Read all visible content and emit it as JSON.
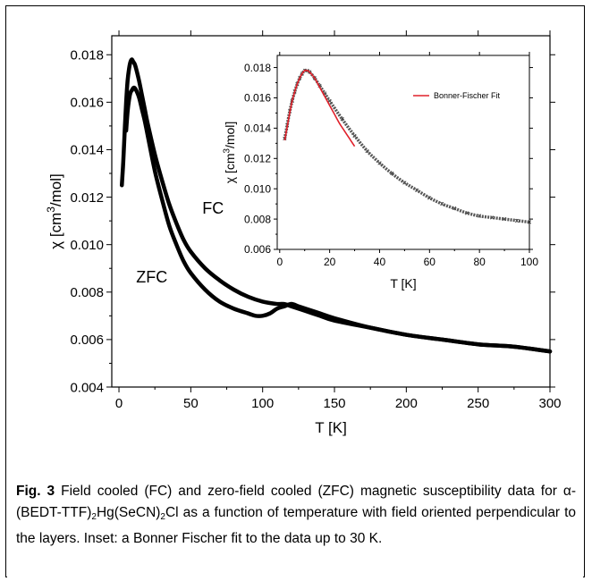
{
  "chart_data": [
    {
      "type": "line",
      "xlabel": "T [K]",
      "ylabel_prefix": "χ [cm",
      "ylabel_sup": "3",
      "ylabel_suffix": "/mol]",
      "xlim": [
        -5,
        300
      ],
      "ylim": [
        0.004,
        0.0188
      ],
      "xticks": [
        0,
        50,
        100,
        150,
        200,
        250,
        300
      ],
      "xtick_labels": [
        "0",
        "50",
        "100",
        "150",
        "200",
        "250",
        "300"
      ],
      "yticks": [
        0.004,
        0.006,
        0.008,
        0.01,
        0.012,
        0.014,
        0.016,
        0.018
      ],
      "ytick_labels": [
        "0.004",
        "0.006",
        "0.008",
        "0.010",
        "0.012",
        "0.014",
        "0.016",
        "0.018"
      ],
      "annotations": [
        "FC",
        "ZFC"
      ],
      "series": [
        {
          "x": [
            2,
            3,
            4,
            5,
            6,
            7,
            8,
            9,
            10,
            11,
            12,
            14,
            16,
            18,
            20,
            25,
            30,
            35,
            40,
            45,
            50,
            60,
            70,
            80,
            90,
            100,
            110,
            115,
            120,
            130,
            140,
            150,
            175,
            200,
            225,
            250,
            275,
            300
          ],
          "values": [
            0.0125,
            0.0135,
            0.0148,
            0.016,
            0.0169,
            0.0174,
            0.0177,
            0.0178,
            0.0177,
            0.0176,
            0.0174,
            0.0169,
            0.0163,
            0.0157,
            0.0151,
            0.0138,
            0.0127,
            0.0117,
            0.0109,
            0.0102,
            0.0097,
            0.009,
            0.0085,
            0.0081,
            0.0078,
            0.0076,
            0.0075,
            0.0075,
            0.0074,
            0.0072,
            0.007,
            0.0068,
            0.0065,
            0.0062,
            0.006,
            0.0058,
            0.0057,
            0.0055
          ]
        },
        {
          "x": [
            5,
            6,
            7,
            8,
            9,
            10,
            11,
            12,
            14,
            16,
            18,
            20,
            25,
            30,
            35,
            40,
            45,
            50,
            60,
            70,
            80,
            90,
            95,
            100,
            105,
            110,
            115,
            120,
            125,
            130,
            140,
            150,
            175,
            200,
            225,
            250,
            275,
            300
          ],
          "values": [
            0.0148,
            0.0156,
            0.0161,
            0.0164,
            0.0165,
            0.0166,
            0.0166,
            0.0165,
            0.0162,
            0.0157,
            0.0152,
            0.0146,
            0.0131,
            0.0119,
            0.0108,
            0.01,
            0.0093,
            0.0088,
            0.0081,
            0.0076,
            0.0073,
            0.0071,
            0.007,
            0.007,
            0.0071,
            0.0073,
            0.0074,
            0.0075,
            0.0074,
            0.0073,
            0.0071,
            0.0069,
            0.0065,
            0.0062,
            0.006,
            0.0058,
            0.0057,
            0.0055
          ]
        }
      ]
    },
    {
      "type": "line",
      "xlabel": "T [K]",
      "ylabel_prefix": "χ [cm",
      "ylabel_sup": "3",
      "ylabel_suffix": "/mol]",
      "xlim": [
        -1,
        100
      ],
      "ylim": [
        0.006,
        0.0188
      ],
      "xticks": [
        0,
        20,
        40,
        60,
        80,
        100
      ],
      "xtick_labels": [
        "0",
        "20",
        "40",
        "60",
        "80",
        "100"
      ],
      "yticks": [
        0.006,
        0.008,
        0.01,
        0.012,
        0.014,
        0.016,
        0.018
      ],
      "ytick_labels": [
        "0.006",
        "0.008",
        "0.010",
        "0.012",
        "0.014",
        "0.016",
        "0.018"
      ],
      "legend": "upper-right",
      "series": [
        {
          "style": "markers",
          "x": [
            2,
            3,
            4,
            5,
            6,
            7,
            8,
            9,
            10,
            11,
            12,
            14,
            16,
            18,
            20,
            25,
            30,
            35,
            40,
            45,
            50,
            55,
            60,
            65,
            70,
            75,
            80,
            85,
            90,
            95,
            100
          ],
          "values": [
            0.0133,
            0.0142,
            0.0151,
            0.0158,
            0.0164,
            0.0169,
            0.0173,
            0.0176,
            0.0178,
            0.0178,
            0.0177,
            0.0173,
            0.0168,
            0.0163,
            0.0158,
            0.0146,
            0.0135,
            0.0125,
            0.0117,
            0.011,
            0.0104,
            0.0099,
            0.0094,
            0.009,
            0.0087,
            0.0084,
            0.0082,
            0.0081,
            0.008,
            0.0079,
            0.0078
          ]
        },
        {
          "name": "Bonner-Fischer Fit",
          "color": "#e0202a",
          "x": [
            2,
            3,
            4,
            5,
            6,
            7,
            8,
            9,
            10,
            11,
            12,
            14,
            16,
            18,
            20,
            22,
            24,
            26,
            28,
            30
          ],
          "values": [
            0.0132,
            0.0141,
            0.015,
            0.0158,
            0.0164,
            0.0169,
            0.0173,
            0.0176,
            0.0178,
            0.0178,
            0.0177,
            0.0173,
            0.0167,
            0.0161,
            0.0155,
            0.0149,
            0.0143,
            0.0138,
            0.0133,
            0.0128
          ]
        }
      ]
    }
  ],
  "caption": {
    "fig_label": "Fig. 3",
    "line1": " Field cooled (FC) and zero-field cooled (ZFC) magnetic susceptibility data for ",
    "alpha": "α",
    "compound_a": "-(BEDT-TTF)",
    "sub_a": "2",
    "compound_b": "Hg(SeCN)",
    "sub_b": "2",
    "compound_c": "Cl",
    "line2": " as a function of temperature with field oriented perpendicular to the layers. Inset: a Bonner Fischer fit to the data up to 30 K."
  }
}
